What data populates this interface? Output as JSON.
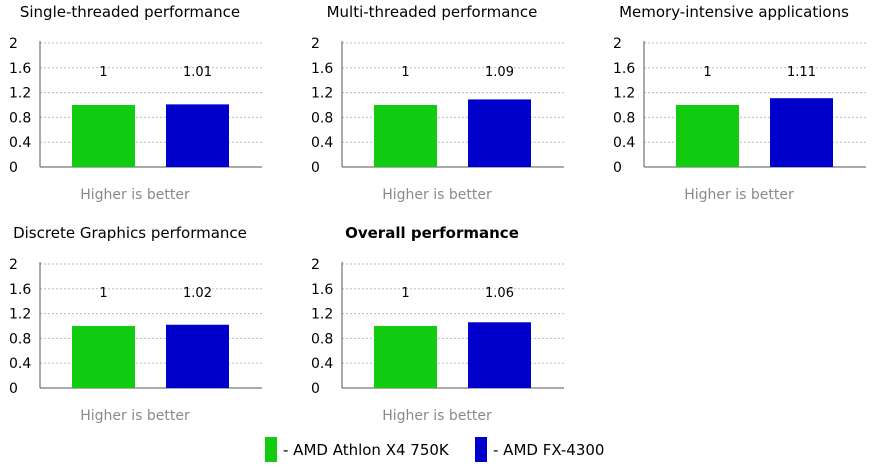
{
  "chart_data": [
    {
      "type": "bar",
      "title": "Single-threaded performance",
      "title_bold": false,
      "categories": [
        "AMD Athlon X4 750K",
        "AMD FX-4300"
      ],
      "values": [
        1,
        1.01
      ],
      "value_labels": [
        "1",
        "1.01"
      ],
      "ylim": [
        0,
        2
      ],
      "yticks": [
        "0",
        "0.4",
        "0.8",
        "1.2",
        "1.6",
        "2"
      ],
      "footnote": "Higher is better",
      "grid": true
    },
    {
      "type": "bar",
      "title": "Multi-threaded performance",
      "title_bold": false,
      "categories": [
        "AMD Athlon X4 750K",
        "AMD FX-4300"
      ],
      "values": [
        1,
        1.09
      ],
      "value_labels": [
        "1",
        "1.09"
      ],
      "ylim": [
        0,
        2
      ],
      "yticks": [
        "0",
        "0.4",
        "0.8",
        "1.2",
        "1.6",
        "2"
      ],
      "footnote": "Higher is better",
      "grid": true
    },
    {
      "type": "bar",
      "title": "Memory-intensive applications",
      "title_bold": false,
      "categories": [
        "AMD Athlon X4 750K",
        "AMD FX-4300"
      ],
      "values": [
        1,
        1.11
      ],
      "value_labels": [
        "1",
        "1.11"
      ],
      "ylim": [
        0,
        2
      ],
      "yticks": [
        "0",
        "0.4",
        "0.8",
        "1.2",
        "1.6",
        "2"
      ],
      "footnote": "Higher is better",
      "grid": true
    },
    {
      "type": "bar",
      "title": "Discrete Graphics performance",
      "title_bold": false,
      "categories": [
        "AMD Athlon X4 750K",
        "AMD FX-4300"
      ],
      "values": [
        1,
        1.02
      ],
      "value_labels": [
        "1",
        "1.02"
      ],
      "ylim": [
        0,
        2
      ],
      "yticks": [
        "0",
        "0.4",
        "0.8",
        "1.2",
        "1.6",
        "2"
      ],
      "footnote": "Higher is better",
      "grid": true
    },
    {
      "type": "bar",
      "title": "Overall performance",
      "title_bold": true,
      "categories": [
        "AMD Athlon X4 750K",
        "AMD FX-4300"
      ],
      "values": [
        1,
        1.06
      ],
      "value_labels": [
        "1",
        "1.06"
      ],
      "ylim": [
        0,
        2
      ],
      "yticks": [
        "0",
        "0.4",
        "0.8",
        "1.2",
        "1.6",
        "2"
      ],
      "footnote": "Higher is better",
      "grid": true
    }
  ],
  "legend": {
    "placement": "bottom-center",
    "items": [
      {
        "label": "- AMD Athlon X4 750K",
        "color": "#11cc11"
      },
      {
        "label": "- AMD FX-4300",
        "color": "#0000cc"
      }
    ]
  },
  "colors": {
    "series": [
      "#11cc11",
      "#0000cc"
    ],
    "grid": "#bbbbbb",
    "axis": "#555555",
    "footnote": "#8a8a8a"
  }
}
